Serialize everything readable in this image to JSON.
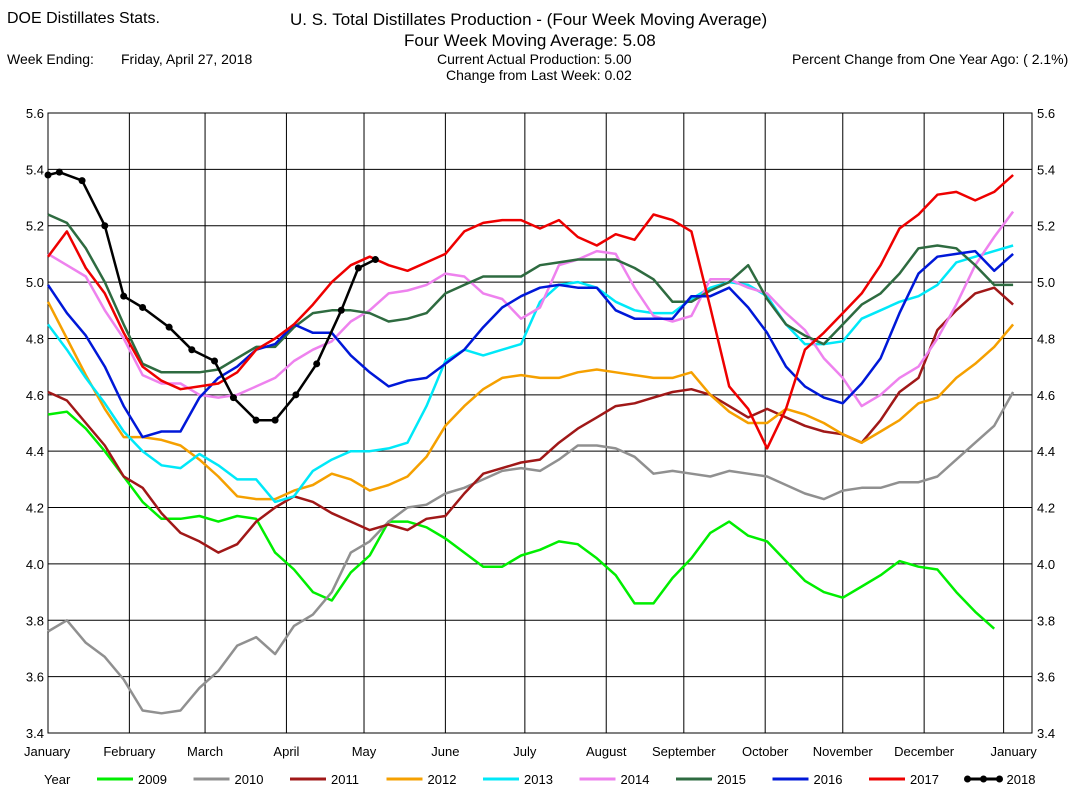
{
  "header": {
    "app_title": "DOE Distillates Stats.",
    "chart_title": "U. S. Total Distillates Production - (Four Week Moving Average)",
    "avg_line": "Four Week Moving Average:   5.08",
    "week_ending_label": "Week Ending:",
    "week_ending_value": "Friday, April 27, 2018",
    "current_actual": "Current Actual Production:   5.00",
    "change_last_week": "Change from Last Week:   0.02",
    "percent_change": "Percent Change from One Year Ago: ( 2.1%)"
  },
  "legend": {
    "label": "Year"
  },
  "chart_data": {
    "type": "line",
    "x_unit": "week of year",
    "xlim": [
      0,
      52
    ],
    "ylim": [
      3.4,
      5.6
    ],
    "yticks": [
      "3.4",
      "3.6",
      "3.8",
      "4.0",
      "4.2",
      "4.4",
      "4.6",
      "4.8",
      "5.0",
      "5.2",
      "5.4",
      "5.6"
    ],
    "ytick_values": [
      3.4,
      3.6,
      3.8,
      4.0,
      4.2,
      4.4,
      4.6,
      4.8,
      5.0,
      5.2,
      5.4,
      5.6
    ],
    "month_labels": [
      "January",
      "February",
      "March",
      "April",
      "May",
      "June",
      "July",
      "August",
      "September",
      "October",
      "November",
      "December",
      "January"
    ],
    "month_weeks": [
      0,
      4.3,
      8.3,
      12.6,
      16.7,
      21.0,
      25.2,
      29.5,
      33.6,
      37.9,
      42.0,
      46.3,
      50.5
    ],
    "grid": true,
    "series": [
      {
        "name": "2009",
        "color": "#00ee00",
        "markers": false,
        "x": [
          0,
          1,
          2,
          3,
          4,
          5,
          6,
          7,
          8,
          9,
          10,
          11,
          12,
          13,
          14,
          15,
          16,
          17,
          18,
          19,
          20,
          21,
          22,
          23,
          24,
          25,
          26,
          27,
          28,
          29,
          30,
          31,
          32,
          33,
          34,
          35,
          36,
          37,
          38,
          39,
          40,
          41,
          42,
          43,
          44,
          45,
          46,
          47,
          48,
          49,
          50
        ],
        "values": [
          4.53,
          4.54,
          4.48,
          4.4,
          4.31,
          4.22,
          4.16,
          4.16,
          4.17,
          4.15,
          4.17,
          4.16,
          4.04,
          3.98,
          3.9,
          3.87,
          3.97,
          4.03,
          4.15,
          4.15,
          4.13,
          4.09,
          4.04,
          3.99,
          3.99,
          4.03,
          4.05,
          4.08,
          4.07,
          4.02,
          3.96,
          3.86,
          3.86,
          3.95,
          4.02,
          4.11,
          4.15,
          4.1,
          4.08,
          4.01,
          3.94,
          3.9,
          3.88,
          3.92,
          3.96,
          4.01,
          3.99,
          3.98,
          3.9,
          3.83,
          3.77
        ]
      },
      {
        "name": "2010",
        "color": "#909090",
        "markers": false,
        "x": [
          0,
          1,
          2,
          3,
          4,
          5,
          6,
          7,
          8,
          9,
          10,
          11,
          12,
          13,
          14,
          15,
          16,
          17,
          18,
          19,
          20,
          21,
          22,
          23,
          24,
          25,
          26,
          27,
          28,
          29,
          30,
          31,
          32,
          33,
          34,
          35,
          36,
          37,
          38,
          39,
          40,
          41,
          42,
          43,
          44,
          45,
          46,
          47,
          48,
          49,
          50,
          51
        ],
        "values": [
          3.76,
          3.8,
          3.72,
          3.67,
          3.59,
          3.48,
          3.47,
          3.48,
          3.56,
          3.62,
          3.71,
          3.74,
          3.68,
          3.78,
          3.82,
          3.9,
          4.04,
          4.08,
          4.15,
          4.2,
          4.21,
          4.25,
          4.27,
          4.3,
          4.33,
          4.34,
          4.33,
          4.37,
          4.42,
          4.42,
          4.41,
          4.38,
          4.32,
          4.33,
          4.32,
          4.31,
          4.33,
          4.32,
          4.31,
          4.28,
          4.25,
          4.23,
          4.26,
          4.27,
          4.27,
          4.29,
          4.29,
          4.31,
          4.37,
          4.43,
          4.49,
          4.61
        ]
      },
      {
        "name": "2011",
        "color": "#a01818",
        "markers": false,
        "x": [
          0,
          1,
          2,
          3,
          4,
          5,
          6,
          7,
          8,
          9,
          10,
          11,
          12,
          13,
          14,
          15,
          16,
          17,
          18,
          19,
          20,
          21,
          22,
          23,
          24,
          25,
          26,
          27,
          28,
          29,
          30,
          31,
          32,
          33,
          34,
          35,
          36,
          37,
          38,
          39,
          40,
          41,
          42,
          43,
          44,
          45,
          46,
          47,
          48,
          49,
          50,
          51
        ],
        "values": [
          4.61,
          4.58,
          4.5,
          4.42,
          4.31,
          4.27,
          4.18,
          4.11,
          4.08,
          4.04,
          4.07,
          4.15,
          4.2,
          4.24,
          4.22,
          4.18,
          4.15,
          4.12,
          4.14,
          4.12,
          4.16,
          4.17,
          4.25,
          4.32,
          4.34,
          4.36,
          4.37,
          4.43,
          4.48,
          4.52,
          4.56,
          4.57,
          4.59,
          4.61,
          4.62,
          4.6,
          4.56,
          4.52,
          4.55,
          4.52,
          4.49,
          4.47,
          4.46,
          4.43,
          4.51,
          4.61,
          4.66,
          4.83,
          4.9,
          4.96,
          4.98,
          4.92
        ]
      },
      {
        "name": "2012",
        "color": "#f5a000",
        "markers": false,
        "x": [
          0,
          1,
          2,
          3,
          4,
          5,
          6,
          7,
          8,
          9,
          10,
          11,
          12,
          13,
          14,
          15,
          16,
          17,
          18,
          19,
          20,
          21,
          22,
          23,
          24,
          25,
          26,
          27,
          28,
          29,
          30,
          31,
          32,
          33,
          34,
          35,
          36,
          37,
          38,
          39,
          40,
          41,
          42,
          43,
          44,
          45,
          46,
          47,
          48,
          49,
          50,
          51
        ],
        "values": [
          4.93,
          4.8,
          4.67,
          4.55,
          4.45,
          4.45,
          4.44,
          4.42,
          4.37,
          4.31,
          4.24,
          4.23,
          4.23,
          4.26,
          4.28,
          4.32,
          4.3,
          4.26,
          4.28,
          4.31,
          4.38,
          4.49,
          4.56,
          4.62,
          4.66,
          4.67,
          4.66,
          4.66,
          4.68,
          4.69,
          4.68,
          4.67,
          4.66,
          4.66,
          4.68,
          4.6,
          4.54,
          4.5,
          4.5,
          4.55,
          4.53,
          4.5,
          4.46,
          4.43,
          4.47,
          4.51,
          4.57,
          4.59,
          4.66,
          4.71,
          4.77,
          4.85
        ]
      },
      {
        "name": "2013",
        "color": "#00e8f8",
        "markers": false,
        "x": [
          0,
          1,
          2,
          3,
          4,
          5,
          6,
          7,
          8,
          9,
          10,
          11,
          12,
          13,
          14,
          15,
          16,
          17,
          18,
          19,
          20,
          21,
          22,
          23,
          24,
          25,
          26,
          27,
          28,
          29,
          30,
          31,
          32,
          33,
          34,
          35,
          36,
          37,
          38,
          39,
          40,
          41,
          42,
          43,
          44,
          45,
          46,
          47,
          48,
          49,
          50,
          51
        ],
        "values": [
          4.85,
          4.76,
          4.66,
          4.57,
          4.47,
          4.4,
          4.35,
          4.34,
          4.39,
          4.35,
          4.3,
          4.3,
          4.22,
          4.24,
          4.33,
          4.37,
          4.4,
          4.4,
          4.41,
          4.43,
          4.56,
          4.72,
          4.76,
          4.74,
          4.76,
          4.78,
          4.93,
          4.99,
          5.0,
          4.98,
          4.93,
          4.9,
          4.89,
          4.89,
          4.94,
          4.98,
          5.0,
          4.99,
          4.95,
          4.85,
          4.78,
          4.78,
          4.79,
          4.87,
          4.9,
          4.93,
          4.95,
          4.99,
          5.07,
          5.09,
          5.11,
          5.13
        ]
      },
      {
        "name": "2014",
        "color": "#ee82ee",
        "markers": false,
        "x": [
          0,
          1,
          2,
          3,
          4,
          5,
          6,
          7,
          8,
          9,
          10,
          11,
          12,
          13,
          14,
          15,
          16,
          17,
          18,
          19,
          20,
          21,
          22,
          23,
          24,
          25,
          26,
          27,
          28,
          29,
          30,
          31,
          32,
          33,
          34,
          35,
          36,
          37,
          38,
          39,
          40,
          41,
          42,
          43,
          44,
          45,
          46,
          47,
          48,
          49,
          50,
          51
        ],
        "values": [
          5.1,
          5.06,
          5.02,
          4.9,
          4.8,
          4.67,
          4.64,
          4.64,
          4.6,
          4.59,
          4.6,
          4.63,
          4.66,
          4.72,
          4.76,
          4.79,
          4.86,
          4.9,
          4.96,
          4.97,
          4.99,
          5.03,
          5.02,
          4.96,
          4.94,
          4.87,
          4.91,
          5.06,
          5.08,
          5.11,
          5.1,
          4.98,
          4.88,
          4.86,
          4.88,
          5.01,
          5.01,
          4.98,
          4.96,
          4.89,
          4.83,
          4.73,
          4.66,
          4.56,
          4.6,
          4.66,
          4.7,
          4.8,
          4.92,
          5.06,
          5.16,
          5.25
        ]
      },
      {
        "name": "2015",
        "color": "#2e6b40",
        "markers": false,
        "x": [
          0,
          1,
          2,
          3,
          4,
          5,
          6,
          7,
          8,
          9,
          10,
          11,
          12,
          13,
          14,
          15,
          16,
          17,
          18,
          19,
          20,
          21,
          22,
          23,
          24,
          25,
          26,
          27,
          28,
          29,
          30,
          31,
          32,
          33,
          34,
          35,
          36,
          37,
          38,
          39,
          40,
          41,
          42,
          43,
          44,
          45,
          46,
          47,
          48,
          49,
          50,
          51
        ],
        "values": [
          5.24,
          5.21,
          5.12,
          5.0,
          4.85,
          4.71,
          4.68,
          4.68,
          4.68,
          4.69,
          4.73,
          4.77,
          4.77,
          4.84,
          4.89,
          4.9,
          4.9,
          4.89,
          4.86,
          4.87,
          4.89,
          4.96,
          4.99,
          5.02,
          5.02,
          5.02,
          5.06,
          5.07,
          5.08,
          5.08,
          5.08,
          5.05,
          5.01,
          4.93,
          4.93,
          4.97,
          5.0,
          5.06,
          4.94,
          4.85,
          4.81,
          4.78,
          4.85,
          4.92,
          4.96,
          5.03,
          5.12,
          5.13,
          5.12,
          5.06,
          4.99,
          4.99
        ]
      },
      {
        "name": "2016",
        "color": "#0018d8",
        "markers": false,
        "x": [
          0,
          1,
          2,
          3,
          4,
          5,
          6,
          7,
          8,
          9,
          10,
          11,
          12,
          13,
          14,
          15,
          16,
          17,
          18,
          19,
          20,
          21,
          22,
          23,
          24,
          25,
          26,
          27,
          28,
          29,
          30,
          31,
          32,
          33,
          34,
          35,
          36,
          37,
          38,
          39,
          40,
          41,
          42,
          43,
          44,
          45,
          46,
          47,
          48,
          49,
          50,
          51
        ],
        "values": [
          4.99,
          4.89,
          4.81,
          4.7,
          4.56,
          4.45,
          4.47,
          4.47,
          4.59,
          4.66,
          4.7,
          4.76,
          4.78,
          4.85,
          4.82,
          4.82,
          4.74,
          4.68,
          4.63,
          4.65,
          4.66,
          4.71,
          4.76,
          4.84,
          4.91,
          4.95,
          4.98,
          4.99,
          4.98,
          4.98,
          4.9,
          4.87,
          4.87,
          4.87,
          4.95,
          4.95,
          4.98,
          4.91,
          4.82,
          4.7,
          4.63,
          4.59,
          4.57,
          4.64,
          4.73,
          4.89,
          5.03,
          5.09,
          5.1,
          5.11,
          5.04,
          5.1
        ]
      },
      {
        "name": "2017",
        "color": "#ee0000",
        "markers": false,
        "x": [
          0,
          1,
          2,
          3,
          4,
          5,
          6,
          7,
          8,
          9,
          10,
          11,
          12,
          13,
          14,
          15,
          16,
          17,
          18,
          19,
          20,
          21,
          22,
          23,
          24,
          25,
          26,
          27,
          28,
          29,
          30,
          31,
          32,
          33,
          34,
          35,
          36,
          37,
          38,
          39,
          40,
          41,
          42,
          43,
          44,
          45,
          46,
          47,
          48,
          49,
          50,
          51
        ],
        "values": [
          5.09,
          5.18,
          5.05,
          4.96,
          4.82,
          4.7,
          4.65,
          4.62,
          4.63,
          4.64,
          4.68,
          4.76,
          4.8,
          4.85,
          4.92,
          5.0,
          5.06,
          5.09,
          5.06,
          5.04,
          5.07,
          5.1,
          5.18,
          5.21,
          5.22,
          5.22,
          5.19,
          5.22,
          5.16,
          5.13,
          5.17,
          5.15,
          5.24,
          5.22,
          5.18,
          4.91,
          4.63,
          4.55,
          4.41,
          4.55,
          4.76,
          4.82,
          4.89,
          4.96,
          5.06,
          5.19,
          5.24,
          5.31,
          5.32,
          5.29,
          5.32,
          5.38
        ]
      },
      {
        "name": "2018",
        "color": "#000000",
        "markers": true,
        "x": [
          0,
          0.6,
          1.8,
          3,
          4,
          5,
          6.4,
          7.6,
          8.8,
          9.8,
          11,
          12,
          13.1,
          14.2,
          15.5,
          16.4,
          17.3
        ],
        "values": [
          5.38,
          5.39,
          5.36,
          5.2,
          4.95,
          4.91,
          4.84,
          4.76,
          4.72,
          4.59,
          4.51,
          4.51,
          4.6,
          4.71,
          4.9,
          5.05,
          5.08
        ]
      }
    ]
  }
}
